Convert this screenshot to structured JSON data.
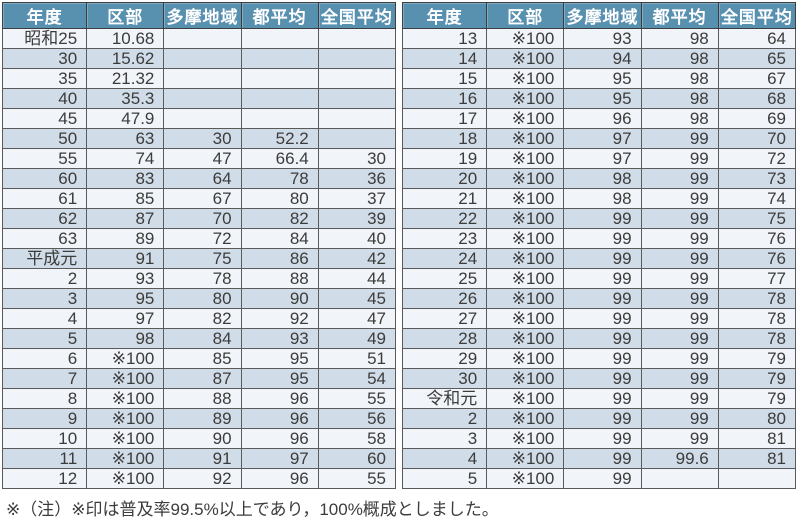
{
  "table": {
    "headers": [
      "年度",
      "区部",
      "多摩地域",
      "都平均",
      "全国平均"
    ],
    "left_rows": [
      [
        "昭和25",
        "10.68",
        "",
        "",
        ""
      ],
      [
        "30",
        "15.62",
        "",
        "",
        ""
      ],
      [
        "35",
        "21.32",
        "",
        "",
        ""
      ],
      [
        "40",
        "35.3",
        "",
        "",
        ""
      ],
      [
        "45",
        "47.9",
        "",
        "",
        ""
      ],
      [
        "50",
        "63",
        "30",
        "52.2",
        ""
      ],
      [
        "55",
        "74",
        "47",
        "66.4",
        "30"
      ],
      [
        "60",
        "83",
        "64",
        "78",
        "36"
      ],
      [
        "61",
        "85",
        "67",
        "80",
        "37"
      ],
      [
        "62",
        "87",
        "70",
        "82",
        "39"
      ],
      [
        "63",
        "89",
        "72",
        "84",
        "40"
      ],
      [
        "平成元",
        "91",
        "75",
        "86",
        "42"
      ],
      [
        "2",
        "93",
        "78",
        "88",
        "44"
      ],
      [
        "3",
        "95",
        "80",
        "90",
        "45"
      ],
      [
        "4",
        "97",
        "82",
        "92",
        "47"
      ],
      [
        "5",
        "98",
        "84",
        "93",
        "49"
      ],
      [
        "6",
        "※100",
        "85",
        "95",
        "51"
      ],
      [
        "7",
        "※100",
        "87",
        "95",
        "54"
      ],
      [
        "8",
        "※100",
        "88",
        "96",
        "55"
      ],
      [
        "9",
        "※100",
        "89",
        "96",
        "56"
      ],
      [
        "10",
        "※100",
        "90",
        "96",
        "58"
      ],
      [
        "11",
        "※100",
        "91",
        "97",
        "60"
      ],
      [
        "12",
        "※100",
        "92",
        "96",
        "55"
      ]
    ],
    "right_rows": [
      [
        "13",
        "※100",
        "93",
        "98",
        "64"
      ],
      [
        "14",
        "※100",
        "94",
        "98",
        "65"
      ],
      [
        "15",
        "※100",
        "95",
        "98",
        "67"
      ],
      [
        "16",
        "※100",
        "95",
        "98",
        "68"
      ],
      [
        "17",
        "※100",
        "96",
        "98",
        "69"
      ],
      [
        "18",
        "※100",
        "97",
        "99",
        "70"
      ],
      [
        "19",
        "※100",
        "97",
        "99",
        "72"
      ],
      [
        "20",
        "※100",
        "98",
        "99",
        "73"
      ],
      [
        "21",
        "※100",
        "98",
        "99",
        "74"
      ],
      [
        "22",
        "※100",
        "99",
        "99",
        "75"
      ],
      [
        "23",
        "※100",
        "99",
        "99",
        "76"
      ],
      [
        "24",
        "※100",
        "99",
        "99",
        "76"
      ],
      [
        "25",
        "※100",
        "99",
        "99",
        "77"
      ],
      [
        "26",
        "※100",
        "99",
        "99",
        "78"
      ],
      [
        "27",
        "※100",
        "99",
        "99",
        "78"
      ],
      [
        "28",
        "※100",
        "99",
        "99",
        "78"
      ],
      [
        "29",
        "※100",
        "99",
        "99",
        "79"
      ],
      [
        "30",
        "※100",
        "99",
        "99",
        "79"
      ],
      [
        "令和元",
        "※100",
        "99",
        "99",
        "79"
      ],
      [
        "2",
        "※100",
        "99",
        "99",
        "80"
      ],
      [
        "3",
        "※100",
        "99",
        "99",
        "81"
      ],
      [
        "4",
        "※100",
        "99",
        "99.6",
        "81"
      ],
      [
        "5",
        "※100",
        "99",
        "",
        ""
      ]
    ]
  },
  "note": "※（注）※印は普及率99.5%以上であり，100%概成としました。",
  "colors": {
    "header_bg": "#5890b0",
    "stripe_bg": "#d0dce8",
    "row_bg": "#f1f4f8",
    "border": "#5a5a5a",
    "text": "#3c3c3c",
    "header_text": "#ffffff"
  }
}
